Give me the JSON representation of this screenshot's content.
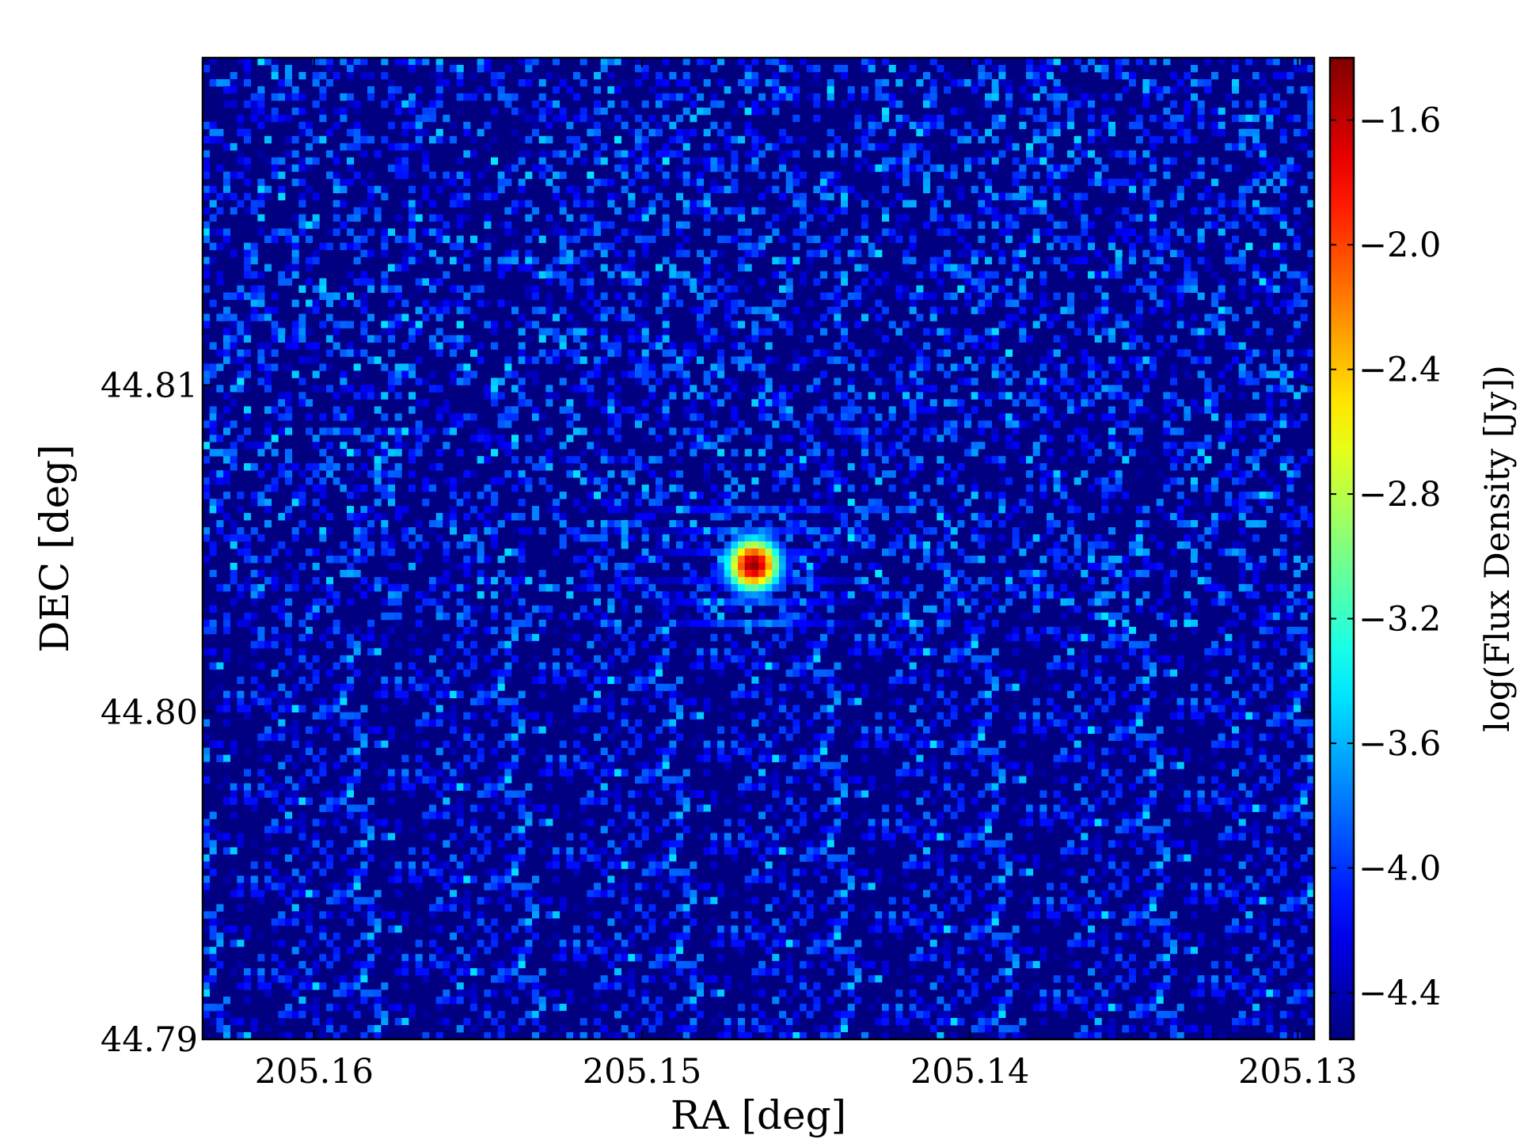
{
  "chart_data": {
    "type": "heatmap",
    "title": "",
    "xlabel": "RA [deg]",
    "ylabel": "DEC [deg]",
    "colorbar_label": "log(Flux Density [Jy])",
    "x_ticks": [
      205.16,
      205.15,
      205.14,
      205.13
    ],
    "x_tick_labels": [
      "205.16",
      "205.15",
      "205.14",
      "205.13"
    ],
    "y_ticks": [
      44.79,
      44.8,
      44.81
    ],
    "y_tick_labels": [
      "44.79",
      "44.80",
      "44.81"
    ],
    "xlim": [
      205.1634,
      205.1295
    ],
    "ylim": [
      44.79,
      44.82
    ],
    "x_inverted": true,
    "colorbar_ticks": [
      -4.4,
      -4.0,
      -3.6,
      -3.2,
      -2.8,
      -2.4,
      -2.0,
      -1.6
    ],
    "colorbar_tick_labels": [
      "−4.4",
      "−4.0",
      "−3.6",
      "−3.2",
      "−2.8",
      "−2.4",
      "−2.0",
      "−1.6"
    ],
    "clim": [
      -4.55,
      -1.4
    ],
    "colormap": "jet",
    "grid": false,
    "background_level": -4.55,
    "noise_peak_level": -3.4,
    "sources": [
      {
        "ra": 205.1466,
        "dec": 44.8045,
        "peak": -1.45,
        "fwhm_deg": 0.0008
      }
    ]
  }
}
